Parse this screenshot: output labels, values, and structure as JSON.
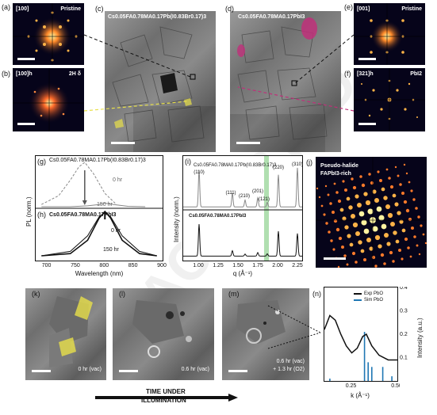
{
  "panels": {
    "a": {
      "letter": "(a)",
      "zone": "[100]",
      "label": "Pristine"
    },
    "b": {
      "letter": "(b)",
      "zone": "[100]h",
      "label": "2H δ"
    },
    "c": {
      "letter": "(c)",
      "formula": "Cs0.05FA0.78MA0.17Pb(I0.83Br0.17)3"
    },
    "d": {
      "letter": "(d)",
      "formula": "Cs0.05FA0.78MA0.17PbI3"
    },
    "e": {
      "letter": "(e)",
      "zone": "[001]",
      "label": "Pristine"
    },
    "f": {
      "letter": "(f)",
      "zone": "[321]h",
      "label": "PbI2"
    },
    "g": {
      "letter": "(g)",
      "formula": "Cs0.05FA0.78MA0.17Pb(I0.83Br0.17)3",
      "t0": "0 hr",
      "t1": "150 hr"
    },
    "h": {
      "letter": "(h)",
      "formula": "Cs0.05FA0.78MA0.17PbI3",
      "t0": "0 hr",
      "t1": "150 hr"
    },
    "i": {
      "letter": "(i)",
      "formula_top": "Cs0.05FA0.78MA0.17Pb(I0.83Br0.17)3",
      "formula_bot": "Cs0.05FA0.78MA0.17PbI3",
      "peaks": [
        "(110)",
        "(111)",
        "(210)",
        "(201)",
        "(121)",
        "(220)",
        "(310)"
      ]
    },
    "j": {
      "letter": "(j)",
      "line1": "Pseudo-halide",
      "line2": "FAPbI3-rich"
    },
    "k": {
      "letter": "(k)",
      "time": "0 hr (vac)"
    },
    "l": {
      "letter": "(l)",
      "time": "0.6 hr (vac)"
    },
    "m": {
      "letter": "(m)",
      "time1": "0.6 hr (vac)",
      "time2": "+ 1.3 hr (O2)"
    },
    "n": {
      "letter": "(n)",
      "legend_exp": "Exp PbO",
      "legend_sim": "Sim PbO"
    }
  },
  "arrow_label": {
    "line1": "TIME UNDER",
    "line2": "ILLUMINATION"
  },
  "watermark": "ACCEPTED",
  "chart_data": [
    {
      "type": "line",
      "panel": "g",
      "ylabel": "PL (norm.)",
      "xlabel": "Wavelength (nm)",
      "xlim": [
        680,
        900
      ],
      "xticks": [
        700,
        750,
        800,
        850,
        900
      ],
      "series": [
        {
          "name": "0 hr",
          "x": [
            690,
            720,
            740,
            755,
            765,
            780,
            800,
            820
          ],
          "y": [
            0.05,
            0.25,
            0.6,
            0.9,
            1.0,
            0.75,
            0.3,
            0.05
          ]
        },
        {
          "name": "150 hr",
          "x": [
            690,
            740,
            770,
            790,
            800,
            815,
            840,
            870
          ],
          "y": [
            0.0,
            0.0,
            0.02,
            0.05,
            0.08,
            0.05,
            0.01,
            0.0
          ]
        }
      ]
    },
    {
      "type": "line",
      "panel": "h",
      "xlabel": "Wavelength (nm)",
      "xlim": [
        680,
        900
      ],
      "xticks": [
        700,
        750,
        800,
        850,
        900
      ],
      "series": [
        {
          "name": "0 hr",
          "x": [
            690,
            740,
            770,
            790,
            800,
            810,
            830,
            860,
            890
          ],
          "y": [
            0.0,
            0.05,
            0.35,
            0.85,
            1.0,
            0.85,
            0.35,
            0.05,
            0.0
          ]
        },
        {
          "name": "150 hr",
          "x": [
            690,
            740,
            770,
            790,
            800,
            810,
            830,
            860,
            890
          ],
          "y": [
            0.0,
            0.1,
            0.45,
            0.88,
            0.97,
            0.88,
            0.45,
            0.1,
            0.0
          ]
        }
      ]
    },
    {
      "type": "line",
      "panel": "i",
      "ylabel": "Intensity (norm.)",
      "xlabel": "q (Å⁻¹)",
      "xlim": [
        0.8,
        2.3
      ],
      "xticks": [
        1.0,
        1.25,
        1.5,
        1.75,
        2.0,
        2.25
      ],
      "xticklabels": [
        "1.00",
        "1.25",
        "1.50",
        "1.75",
        "2.00",
        "2.25"
      ]
    },
    {
      "type": "line",
      "panel": "n",
      "ylabel": "Intensity (a.u.)",
      "xlabel": "k (Å⁻¹)",
      "xlim": [
        0.1,
        0.5
      ],
      "ylim": [
        0,
        0.4
      ],
      "xticks": [
        0.25,
        0.5
      ],
      "yticks": [
        0.1,
        0.2,
        0.3,
        0.4
      ],
      "exp": {
        "x": [
          0.1,
          0.13,
          0.16,
          0.19,
          0.22,
          0.25,
          0.28,
          0.31,
          0.33,
          0.36,
          0.4,
          0.45,
          0.5
        ],
        "y": [
          0.22,
          0.28,
          0.26,
          0.2,
          0.15,
          0.12,
          0.14,
          0.19,
          0.2,
          0.15,
          0.11,
          0.09,
          0.09
        ]
      },
      "sim": {
        "x": [
          0.13,
          0.32,
          0.34,
          0.36,
          0.42,
          0.47
        ],
        "y": [
          0.01,
          0.21,
          0.08,
          0.06,
          0.06,
          0.02
        ]
      }
    }
  ]
}
